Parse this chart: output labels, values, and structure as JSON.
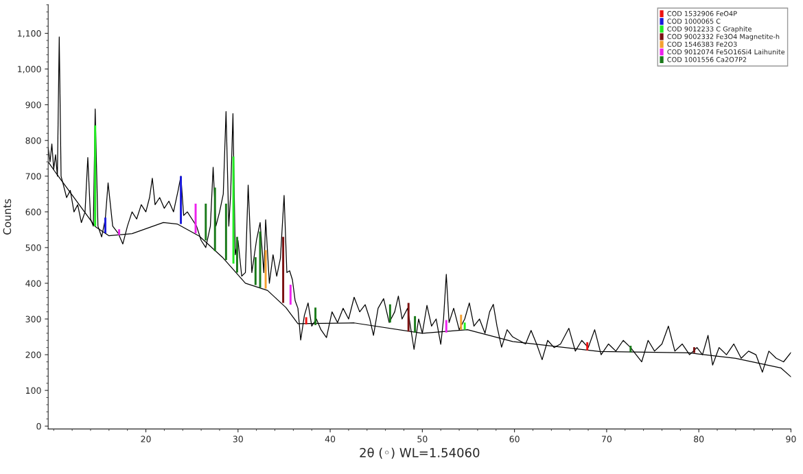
{
  "chart_data": {
    "type": "line",
    "xlabel": "2θ (◦) WL=1.54060",
    "ylabel": "Counts",
    "xlim": [
      9.4,
      90
    ],
    "ylim": [
      -8,
      1180
    ],
    "xticks": [
      20,
      30,
      40,
      50,
      60,
      70,
      80,
      90
    ],
    "yticks": [
      0,
      100,
      200,
      300,
      400,
      500,
      600,
      700,
      800,
      900,
      {
        "value": 1000,
        "label": "1,000"
      },
      {
        "value": 1100,
        "label": "1,100"
      }
    ],
    "grid": false,
    "legend": "top right",
    "series": [
      {
        "color": "#000000",
        "x": [
          9.4,
          9.6,
          9.8,
          10.0,
          10.2,
          10.4,
          10.6,
          10.8,
          11.0,
          11.4,
          11.8,
          12.2,
          12.6,
          13.0,
          13.4,
          13.7,
          14.0,
          14.3,
          14.5,
          14.8,
          15.2,
          15.6,
          15.9,
          16.4,
          17.0,
          17.5,
          18.0,
          18.5,
          19.0,
          19.5,
          20.0,
          20.4,
          20.7,
          21.0,
          21.5,
          22.0,
          22.5,
          23.0,
          23.5,
          23.8,
          24.1,
          24.5,
          25.0,
          25.5,
          26.0,
          26.5,
          27.0,
          27.3,
          27.6,
          28.0,
          28.4,
          28.7,
          29.0,
          29.2,
          29.45,
          29.7,
          30.0,
          30.4,
          30.8,
          31.1,
          31.5,
          32.0,
          32.4,
          32.8,
          33.0,
          33.4,
          33.8,
          34.2,
          34.6,
          35.0,
          35.3,
          35.6,
          35.9,
          36.2,
          36.5,
          36.8,
          37.2,
          37.6,
          38.0,
          38.5,
          39.0,
          39.6,
          40.2,
          40.8,
          41.4,
          42.0,
          42.6,
          43.2,
          43.8,
          44.3,
          44.7,
          45.2,
          45.8,
          46.4,
          47.0,
          47.4,
          47.8,
          48.4,
          49.1,
          49.6,
          50.0,
          50.5,
          51.0,
          51.5,
          52.0,
          52.3,
          52.6,
          52.9,
          53.4,
          54.0,
          54.6,
          55.1,
          55.6,
          56.2,
          56.8,
          57.3,
          57.7,
          58.1,
          58.6,
          59.2,
          59.8,
          60.5,
          61.2,
          61.8,
          62.4,
          63.0,
          63.6,
          64.3,
          65.0,
          65.9,
          66.6,
          67.3,
          68.0,
          68.7,
          69.4,
          70.2,
          71.0,
          71.8,
          72.6,
          73.2,
          73.8,
          74.5,
          75.2,
          76.0,
          76.7,
          77.4,
          78.2,
          79.0,
          79.8,
          80.4,
          81.0,
          81.5,
          82.2,
          83.0,
          83.8,
          84.6,
          85.4,
          86.2,
          86.9,
          87.6,
          88.4,
          89.2,
          90.0
        ],
        "values": [
          780,
          740,
          790,
          720,
          760,
          700,
          1090,
          700,
          680,
          640,
          660,
          600,
          620,
          570,
          600,
          752,
          580,
          560,
          888,
          560,
          530,
          580,
          681,
          560,
          540,
          510,
          560,
          600,
          580,
          620,
          600,
          640,
          694,
          620,
          640,
          610,
          630,
          600,
          660,
          700,
          590,
          600,
          580,
          560,
          520,
          500,
          560,
          725,
          560,
          600,
          650,
          881,
          560,
          650,
          875,
          480,
          520,
          420,
          430,
          675,
          430,
          520,
          570,
          430,
          578,
          400,
          480,
          420,
          470,
          646,
          430,
          435,
          410,
          351,
          330,
          241,
          310,
          345,
          280,
          300,
          270,
          248,
          320,
          290,
          330,
          300,
          361,
          320,
          340,
          300,
          254,
          330,
          357,
          290,
          320,
          364,
          300,
          330,
          215,
          300,
          260,
          338,
          280,
          300,
          229,
          300,
          425,
          290,
          330,
          270,
          300,
          345,
          280,
          300,
          260,
          320,
          341,
          280,
          221,
          270,
          250,
          240,
          230,
          268,
          230,
          186,
          240,
          220,
          230,
          274,
          210,
          240,
          220,
          270,
          200,
          230,
          210,
          240,
          220,
          200,
          180,
          240,
          210,
          230,
          280,
          210,
          230,
          200,
          220,
          200,
          254,
          171,
          220,
          200,
          230,
          190,
          210,
          200,
          151,
          210,
          190,
          180,
          206
        ]
      },
      {
        "color": "#000000",
        "x": [
          9.4,
          10.1,
          14.5,
          16.0,
          18.5,
          21.9,
          23.4,
          25.8,
          28.3,
          30.8,
          33.2,
          35.2,
          36.5,
          42.6,
          50.0,
          54.9,
          59.8,
          69.2,
          79.0,
          84.0,
          88.9,
          90.0
        ],
        "values": [
          740,
          714,
          559,
          533,
          539,
          570,
          566,
          532,
          473,
          400,
          380,
          332,
          287,
          289,
          260,
          270,
          237,
          209,
          205,
          190,
          163,
          138
        ]
      },
      {
        "type": "bar",
        "name": "COD 1532906 FeO4P",
        "color": "#ee1111",
        "x": [
          37.4,
          67.9
        ],
        "base": [
          285,
          212
        ],
        "values": [
          20,
          23
        ]
      },
      {
        "type": "bar",
        "name": "COD 1000065 C",
        "color": "#1a1adc",
        "x": [
          15.6,
          23.8
        ],
        "base": [
          540,
          566
        ],
        "values": [
          44,
          134
        ]
      },
      {
        "type": "bar",
        "name": "COD 9012233 C Graphite",
        "color": "#22ee22",
        "x": [
          14.5,
          29.5,
          54.6
        ],
        "base": [
          560,
          455,
          270
        ],
        "values": [
          282,
          300,
          20
        ]
      },
      {
        "type": "bar",
        "name": "COD 9002332 Fe3O4 Magnetite-h",
        "color": "#7b1010",
        "x": [
          34.9,
          48.5,
          79.5
        ],
        "base": [
          345,
          265,
          205
        ],
        "values": [
          185,
          80,
          16
        ]
      },
      {
        "type": "bar",
        "name": "COD 1546383 Fe2O3",
        "color": "#f5a030",
        "x": [
          33.0,
          54.2
        ],
        "base": [
          385,
          270
        ],
        "values": [
          108,
          42
        ]
      },
      {
        "type": "bar",
        "name": "COD 9012074 Fe5O16Si4 Laihunite",
        "color": "#ee22ee",
        "x": [
          17.1,
          25.4,
          35.7,
          52.6
        ],
        "base": [
          535,
          540,
          340,
          262
        ],
        "values": [
          16,
          83,
          56,
          35
        ]
      },
      {
        "type": "bar",
        "name": "COD 1001556 Ca2O7P2",
        "color": "#1a7a1a",
        "x": [
          26.5,
          27.5,
          28.7,
          29.9,
          31.9,
          32.4,
          38.4,
          46.5,
          49.2,
          72.6
        ],
        "base": [
          520,
          490,
          465,
          430,
          395,
          388,
          283,
          290,
          262,
          207
        ],
        "values": [
          103,
          178,
          158,
          100,
          78,
          157,
          49,
          51,
          46,
          18
        ]
      }
    ]
  }
}
